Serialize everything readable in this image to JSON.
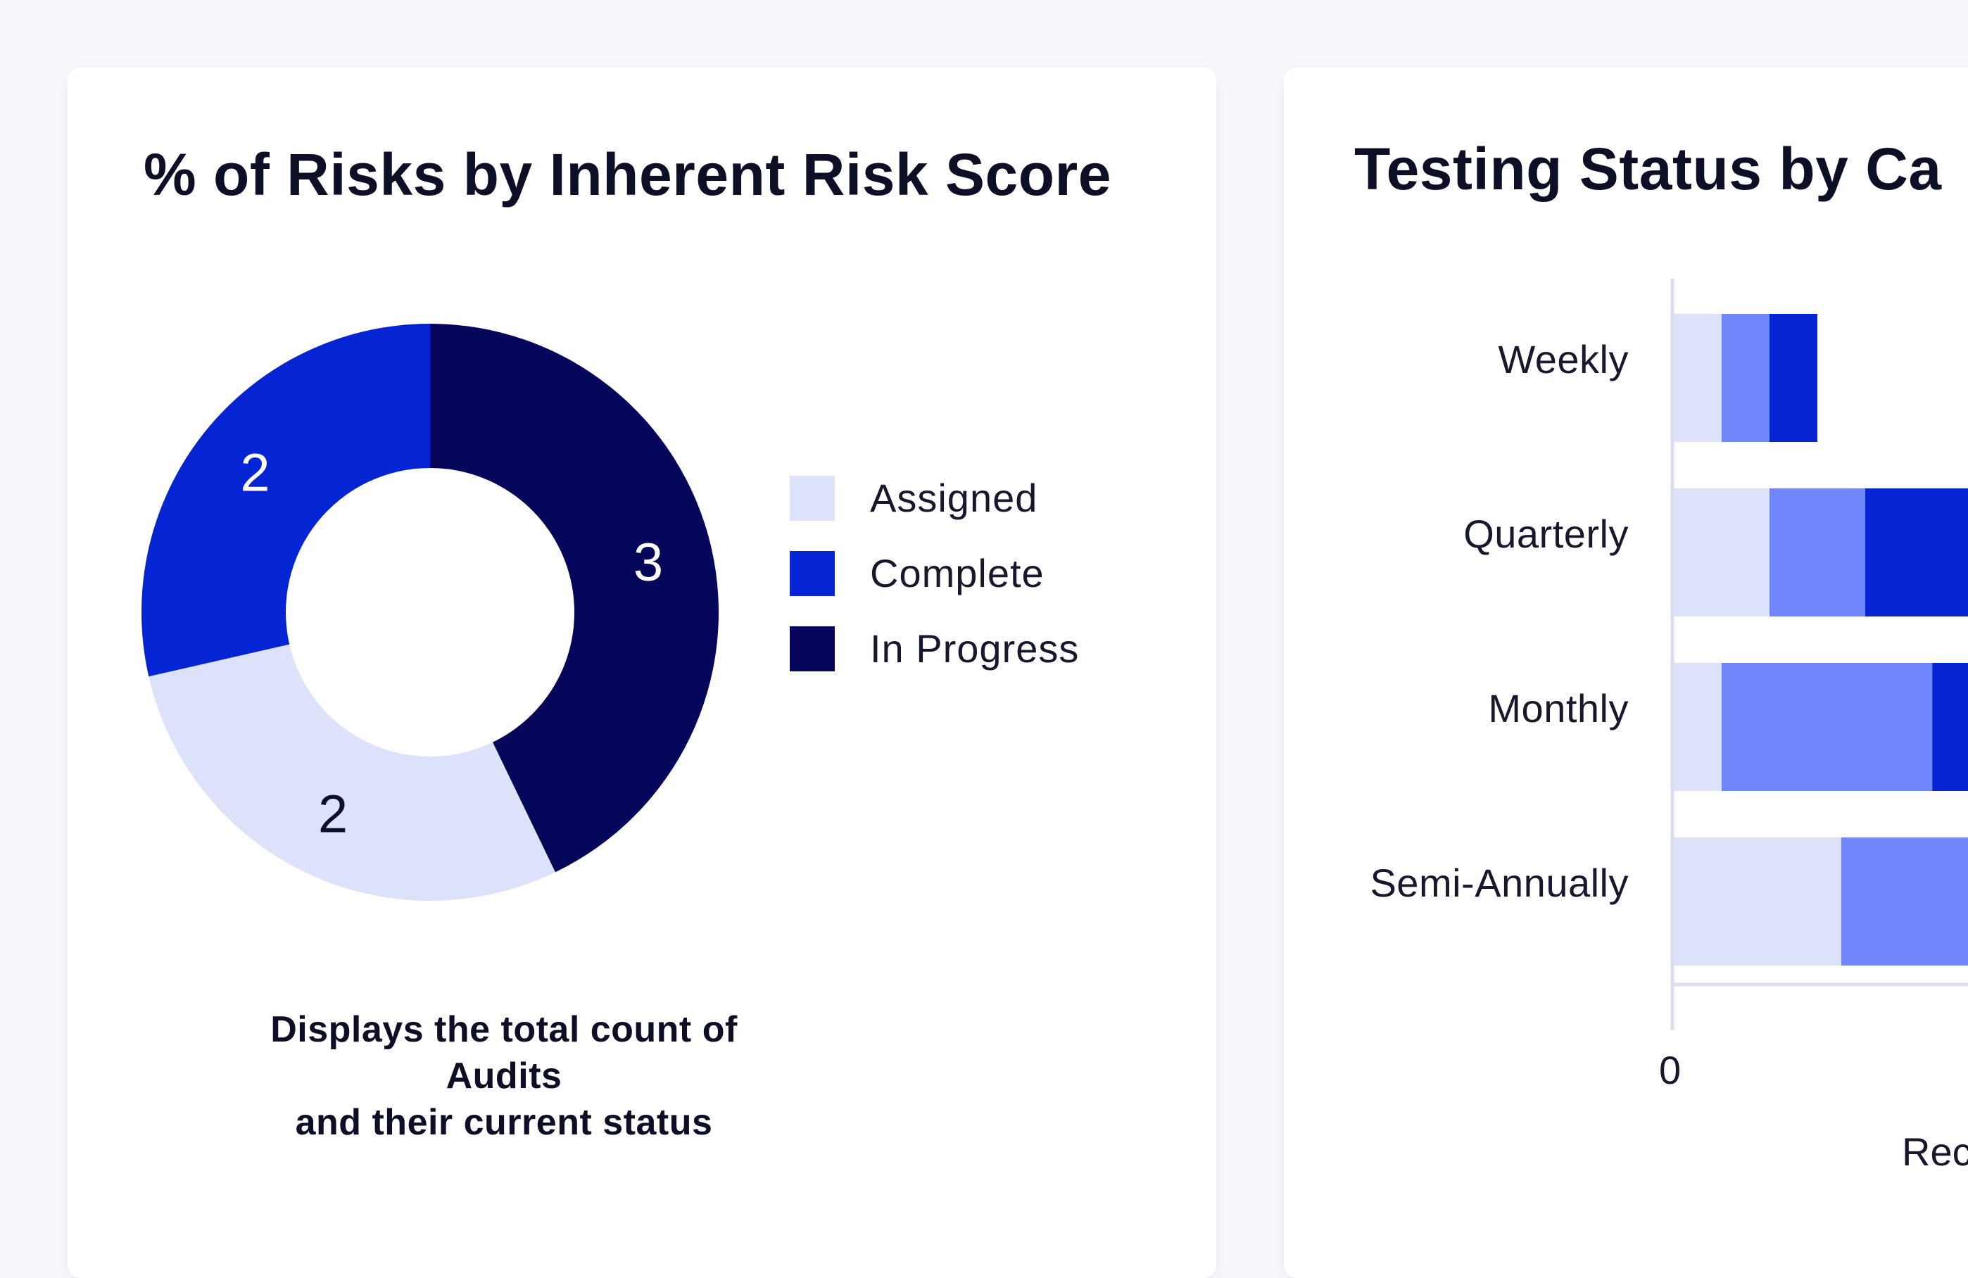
{
  "colors": {
    "assigned": "#dde2fb",
    "complete": "#0524d4",
    "in_progress": "#06075a",
    "medium": "#6f87fb"
  },
  "left_card": {
    "title": "% of Risks by Inherent Risk Score",
    "legend": [
      "Assigned",
      "Complete",
      "In Progress"
    ],
    "caption_line1": "Displays the total count of Audits",
    "caption_line2": "and their current status"
  },
  "right_card": {
    "title": "Testing Status by Ca",
    "x_tick_0": "0",
    "x_axis_label_partial": "Rec"
  },
  "chart_data": [
    {
      "type": "pie",
      "title": "% of Risks by Inherent Risk Score",
      "donut": true,
      "legend_position": "right",
      "slices": [
        {
          "label": "In Progress",
          "value": 3,
          "color": "#06075a"
        },
        {
          "label": "Assigned",
          "value": 2,
          "color": "#dde2fb"
        },
        {
          "label": "Complete",
          "value": 2,
          "color": "#0524d4"
        }
      ]
    },
    {
      "type": "bar",
      "orientation": "horizontal",
      "stacked": true,
      "title": "Testing Status by Ca",
      "categories": [
        "Weekly",
        "Quarterly",
        "Monthly",
        "Semi-Annually"
      ],
      "x_ticks": [
        "0"
      ],
      "series": [
        {
          "color": "#dde2fb",
          "values": [
            1,
            2,
            1,
            3.5
          ]
        },
        {
          "color": "#6f87fb",
          "values": [
            1,
            2,
            4.4,
            3.5
          ]
        },
        {
          "color": "#0524d4",
          "values": [
            1,
            3,
            3,
            0
          ]
        }
      ]
    }
  ]
}
